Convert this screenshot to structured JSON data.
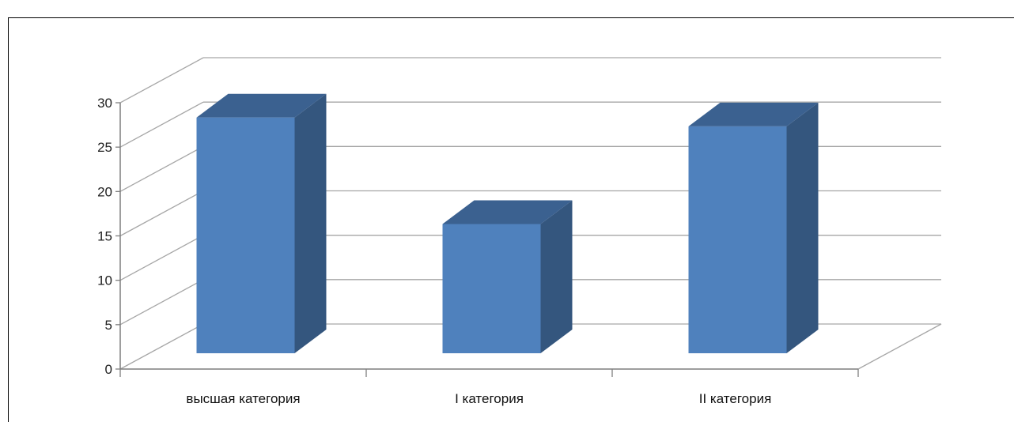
{
  "chart_data": {
    "type": "bar",
    "title": "",
    "xlabel": "",
    "ylabel": "",
    "categories": [
      "высшая категория",
      "I категория",
      "II категория"
    ],
    "values": [
      27,
      15,
      26
    ],
    "ylim": [
      0,
      30
    ],
    "yticks": [
      "0",
      "5",
      "10",
      "15",
      "20",
      "25",
      "30"
    ],
    "grid": true,
    "three_d": true,
    "legend": "none",
    "colors": {
      "front": "#4f81bd",
      "top": "#3b6190",
      "side": "#34567e",
      "grid": "#a6a6a6",
      "axis": "#7f7f7f"
    }
  }
}
